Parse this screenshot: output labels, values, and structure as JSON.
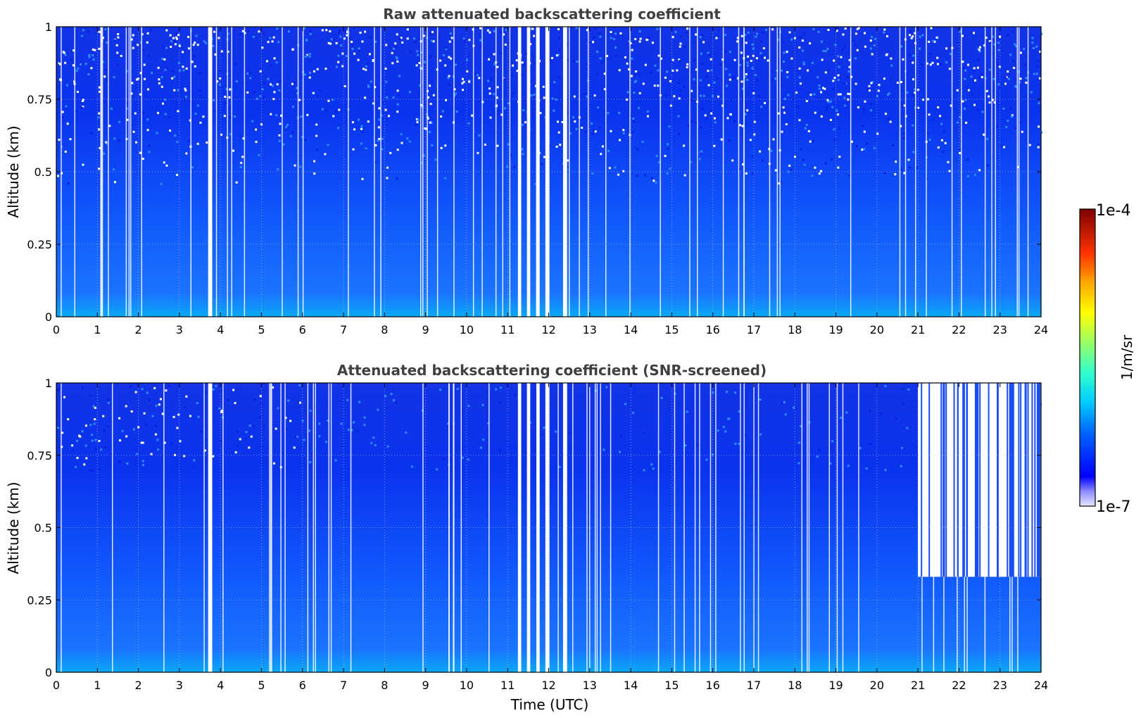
{
  "chart_data": [
    {
      "type": "heatmap",
      "title": "Raw attenuated backscattering coefficient",
      "xlabel": "",
      "ylabel": "Altitude (km)",
      "xlim": [
        0,
        24
      ],
      "ylim": [
        0,
        1
      ],
      "xticks": [
        "0",
        "1",
        "2",
        "3",
        "4",
        "5",
        "6",
        "7",
        "8",
        "9",
        "10",
        "11",
        "12",
        "13",
        "14",
        "15",
        "16",
        "17",
        "18",
        "19",
        "20",
        "21",
        "22",
        "23",
        "24"
      ],
      "yticks": [
        "0",
        "0.25",
        "0.5",
        "0.75",
        "1"
      ],
      "grid": true,
      "data_gaps_utc": [
        [
          3.7,
          3.8
        ],
        [
          11.25,
          11.33
        ],
        [
          11.47,
          11.55
        ],
        [
          11.7,
          11.78
        ],
        [
          11.92,
          12.02
        ],
        [
          12.35,
          12.45
        ]
      ]
    },
    {
      "type": "heatmap",
      "title": "Attenuated backscattering coefficient (SNR-screened)",
      "xlabel": "Time (UTC)",
      "ylabel": "Altitude (km)",
      "xlim": [
        0,
        24
      ],
      "ylim": [
        0,
        1
      ],
      "xticks": [
        "0",
        "1",
        "2",
        "3",
        "4",
        "5",
        "6",
        "7",
        "8",
        "9",
        "10",
        "11",
        "12",
        "13",
        "14",
        "15",
        "16",
        "17",
        "18",
        "19",
        "20",
        "21",
        "22",
        "23",
        "24"
      ],
      "yticks": [
        "0",
        "0.25",
        "0.5",
        "0.75",
        "1"
      ],
      "grid": true,
      "data_gaps_utc": [
        [
          3.7,
          3.8
        ],
        [
          11.25,
          11.33
        ],
        [
          11.47,
          11.55
        ],
        [
          11.7,
          11.78
        ],
        [
          11.92,
          12.02
        ],
        [
          12.35,
          12.45
        ]
      ],
      "screened_top_after_21utc_km": 0.33
    }
  ],
  "colorbar": {
    "label": "1/m/sr",
    "max_label": "1e-4",
    "min_label": "1e-7",
    "scale": "log",
    "range": [
      1e-07,
      0.0001
    ],
    "colormap": "jet"
  }
}
